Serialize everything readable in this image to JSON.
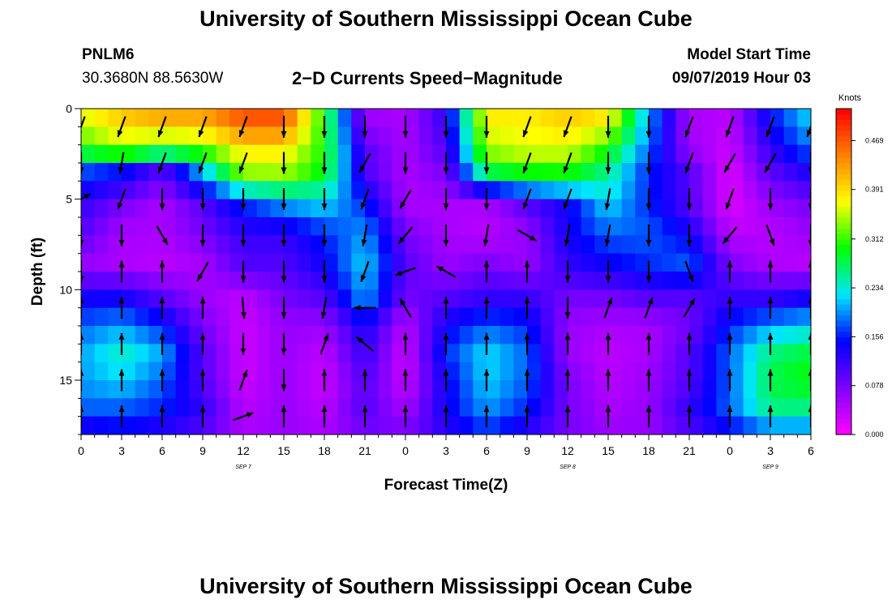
{
  "header": {
    "title": "University of Southern Mississippi Ocean Cube",
    "station": "PNLM6",
    "coordinates": "30.3680N 88.5630W",
    "subtitle": "2−D Currents Speed−Magnitude",
    "model_start_label": "Model Start Time",
    "model_start_value": "09/07/2019 Hour 03"
  },
  "footer": {
    "title": "University of Southern Mississippi Ocean Cube"
  },
  "chart_data": {
    "type": "heatmap",
    "xlabel": "Forecast Time(Z)",
    "ylabel": "Depth (ft)",
    "x_tick_labels": [
      "0",
      "3",
      "6",
      "9",
      "12",
      "15",
      "18",
      "21",
      "0",
      "3",
      "6",
      "9",
      "12",
      "15",
      "18",
      "21",
      "0",
      "3",
      "6"
    ],
    "date_labels": [
      {
        "text": "SEP 7",
        "hour": 12
      },
      {
        "text": "SEP 8",
        "hour": 36
      },
      {
        "text": "SEP 9",
        "hour": 51
      }
    ],
    "xlim": [
      0,
      54
    ],
    "y_ticks": [
      0,
      5,
      10,
      15
    ],
    "ylim": [
      0,
      18
    ],
    "y_inverted": true,
    "colorbar": {
      "label": "Knots",
      "ticks": [
        "0.000",
        "0.078",
        "0.156",
        "0.234",
        "0.312",
        "0.391",
        "0.469"
      ],
      "tick_values": [
        0.0,
        0.078,
        0.156,
        0.234,
        0.312,
        0.391,
        0.469
      ],
      "max": 0.52,
      "colors": [
        "#ff00ff",
        "#8000ff",
        "#0000ff",
        "#00e5ff",
        "#00ff00",
        "#ffff00",
        "#ff8000",
        "#ff0000"
      ]
    },
    "time_hours": [
      0,
      3,
      6,
      9,
      12,
      15,
      18,
      21,
      24,
      27,
      30,
      33,
      36,
      39,
      42,
      45,
      48,
      51,
      54
    ],
    "depth_levels": [
      0.7,
      2.3,
      3.3,
      5.3,
      6.9,
      8.7,
      10.5,
      12,
      13.5,
      15,
      16.5,
      18
    ],
    "speed_knots": [
      [
        0.36,
        0.4,
        0.42,
        0.42,
        0.47,
        0.47,
        0.3,
        0.06,
        0.05,
        0.12,
        0.38,
        0.38,
        0.4,
        0.38,
        0.2,
        0.05,
        0.04,
        0.15,
        0.22
      ],
      [
        0.3,
        0.34,
        0.3,
        0.32,
        0.38,
        0.38,
        0.3,
        0.1,
        0.05,
        0.1,
        0.34,
        0.36,
        0.36,
        0.3,
        0.18,
        0.06,
        0.03,
        0.12,
        0.18
      ],
      [
        0.18,
        0.16,
        0.1,
        0.22,
        0.36,
        0.36,
        0.3,
        0.1,
        0.05,
        0.08,
        0.3,
        0.32,
        0.32,
        0.26,
        0.16,
        0.1,
        0.02,
        0.1,
        0.14
      ],
      [
        0.12,
        0.08,
        0.05,
        0.1,
        0.16,
        0.2,
        0.22,
        0.16,
        0.05,
        0.05,
        0.05,
        0.1,
        0.14,
        0.22,
        0.16,
        0.1,
        0.02,
        0.06,
        0.08
      ],
      [
        0.1,
        0.05,
        0.05,
        0.08,
        0.12,
        0.12,
        0.16,
        0.2,
        0.08,
        0.05,
        0.04,
        0.06,
        0.14,
        0.18,
        0.18,
        0.14,
        0.04,
        0.04,
        0.06
      ],
      [
        0.06,
        0.05,
        0.04,
        0.05,
        0.1,
        0.1,
        0.14,
        0.22,
        0.1,
        0.06,
        0.08,
        0.06,
        0.12,
        0.14,
        0.16,
        0.18,
        0.08,
        0.05,
        0.04
      ],
      [
        0.14,
        0.14,
        0.1,
        0.06,
        0.04,
        0.08,
        0.1,
        0.2,
        0.08,
        0.1,
        0.12,
        0.12,
        0.08,
        0.08,
        0.1,
        0.1,
        0.12,
        0.12,
        0.14
      ],
      [
        0.18,
        0.2,
        0.16,
        0.08,
        0.03,
        0.06,
        0.06,
        0.14,
        0.04,
        0.14,
        0.18,
        0.16,
        0.06,
        0.05,
        0.05,
        0.08,
        0.16,
        0.2,
        0.22
      ],
      [
        0.2,
        0.24,
        0.2,
        0.1,
        0.03,
        0.06,
        0.04,
        0.12,
        0.03,
        0.16,
        0.22,
        0.18,
        0.06,
        0.04,
        0.05,
        0.1,
        0.18,
        0.26,
        0.28
      ],
      [
        0.2,
        0.22,
        0.18,
        0.1,
        0.03,
        0.06,
        0.03,
        0.1,
        0.03,
        0.14,
        0.22,
        0.18,
        0.08,
        0.04,
        0.06,
        0.1,
        0.18,
        0.28,
        0.3
      ],
      [
        0.18,
        0.18,
        0.16,
        0.12,
        0.04,
        0.06,
        0.04,
        0.1,
        0.05,
        0.14,
        0.2,
        0.16,
        0.08,
        0.05,
        0.06,
        0.12,
        0.18,
        0.26,
        0.26
      ],
      [
        0.12,
        0.14,
        0.12,
        0.1,
        0.05,
        0.06,
        0.05,
        0.08,
        0.08,
        0.12,
        0.16,
        0.12,
        0.08,
        0.06,
        0.06,
        0.1,
        0.14,
        0.18,
        0.18
      ]
    ],
    "vector_depths": [
      1,
      3,
      5,
      7,
      9,
      11,
      13,
      15,
      17
    ],
    "vector_directions_deg": [
      [
        200,
        200,
        200,
        200,
        200,
        180,
        180,
        180,
        180,
        180,
        180,
        200,
        200,
        180,
        180,
        200,
        200,
        200,
        200
      ],
      [
        180,
        190,
        200,
        200,
        200,
        180,
        180,
        210,
        180,
        180,
        180,
        200,
        200,
        180,
        180,
        200,
        210,
        210,
        180
      ],
      [
        60,
        200,
        180,
        180,
        180,
        180,
        180,
        200,
        210,
        180,
        180,
        200,
        200,
        190,
        180,
        180,
        200,
        180,
        180
      ],
      [
        180,
        180,
        150,
        180,
        180,
        180,
        180,
        190,
        220,
        180,
        190,
        120,
        190,
        190,
        180,
        180,
        220,
        160,
        180
      ],
      [
        180,
        0,
        0,
        210,
        180,
        180,
        180,
        200,
        250,
        300,
        0,
        0,
        180,
        180,
        180,
        160,
        0,
        0,
        0
      ],
      [
        0,
        0,
        0,
        0,
        175,
        180,
        190,
        270,
        330,
        0,
        0,
        0,
        180,
        20,
        20,
        30,
        0,
        0,
        0
      ],
      [
        0,
        0,
        0,
        0,
        180,
        180,
        20,
        310,
        0,
        0,
        0,
        0,
        0,
        0,
        0,
        0,
        0,
        0,
        0
      ],
      [
        0,
        0,
        0,
        0,
        20,
        180,
        0,
        0,
        0,
        0,
        0,
        0,
        0,
        0,
        0,
        0,
        0,
        0,
        0
      ],
      [
        0,
        0,
        0,
        0,
        70,
        0,
        0,
        0,
        0,
        0,
        0,
        0,
        0,
        0,
        0,
        0,
        0,
        0,
        0
      ]
    ]
  }
}
